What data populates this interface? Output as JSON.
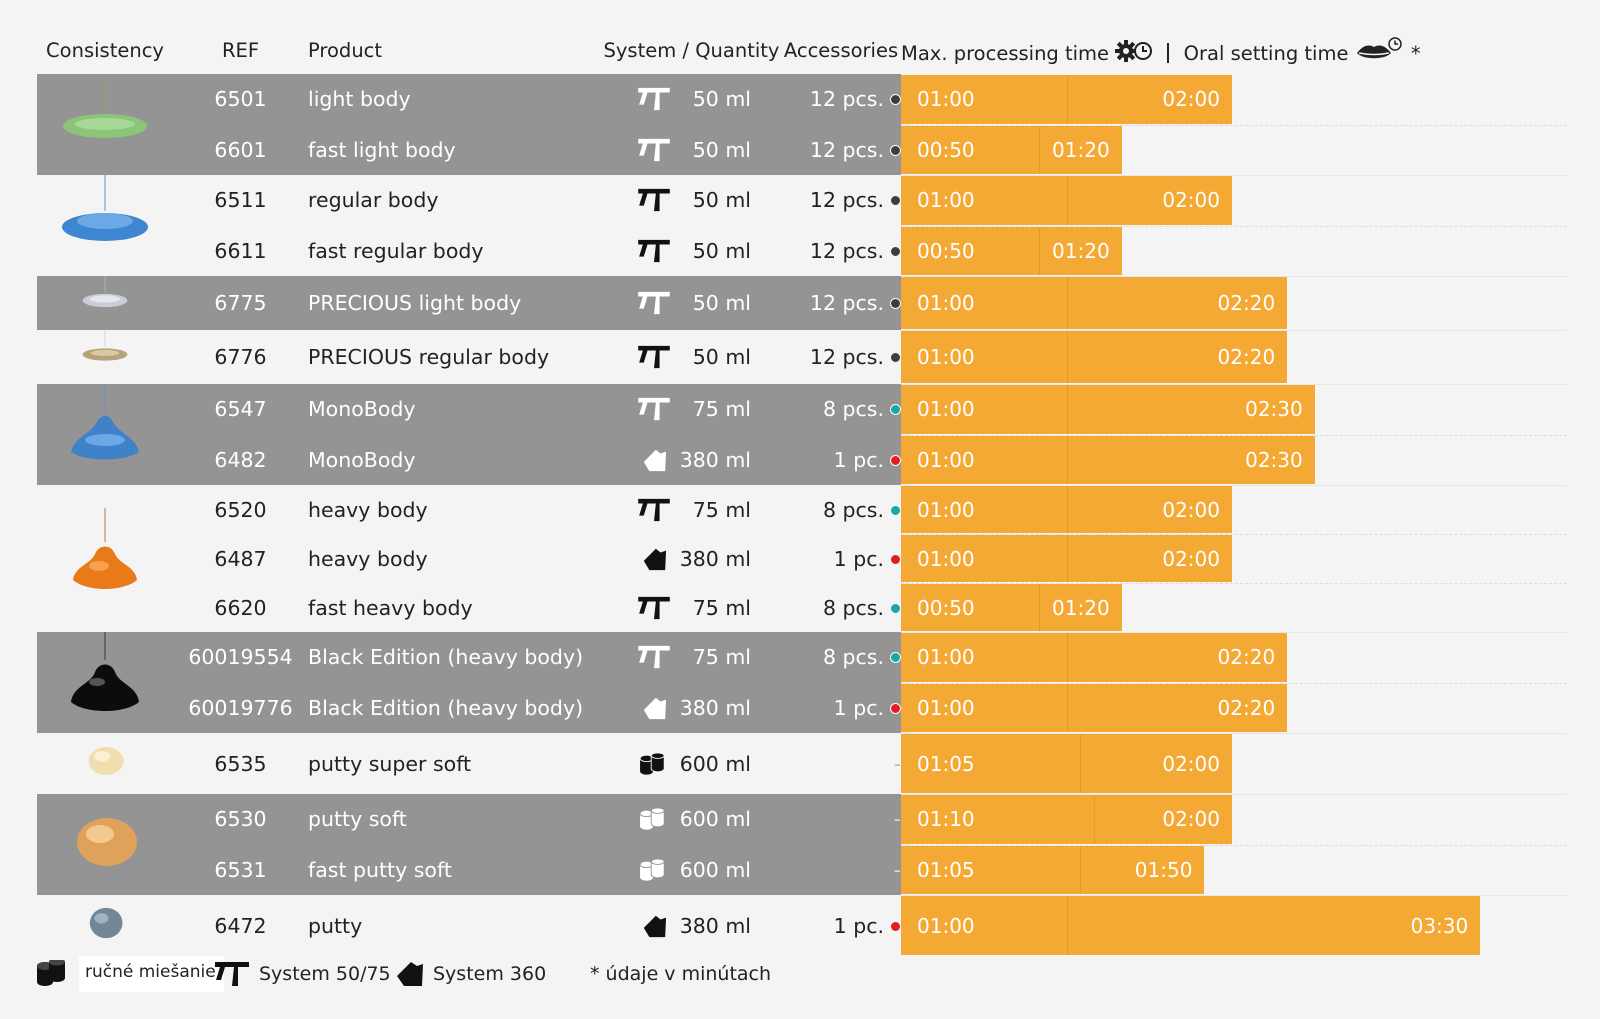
{
  "header": {
    "consistency": "Consistency",
    "ref": "REF",
    "product": "Product",
    "system_quantity": "System / Quantity",
    "accessories": "Accessories",
    "max_processing": "Max. processing time",
    "oral_setting": "Oral setting time",
    "asterisk": "*"
  },
  "time_scale_max": "04:00",
  "colors": {
    "row_dark": "#949494",
    "row_light": "#f4f4f4",
    "time_bar": "#f4a935",
    "dot_dark_grey": "#3c3c44",
    "dot_teal": "#1aa7a7",
    "dot_red": "#e31b23"
  },
  "groups": [
    {
      "consistency_icon": "green-light-body-drop-icon",
      "shade": "dark",
      "rows": [
        {
          "ref": "6501",
          "product": "light body",
          "system": "system-50-75-icon",
          "quantity": "50 ml",
          "accessories": "12 pcs.",
          "dot": "dark-grey",
          "processing": "01:00",
          "setting": "02:00"
        },
        {
          "ref": "6601",
          "product": "fast light body",
          "system": "system-50-75-icon",
          "quantity": "50 ml",
          "accessories": "12 pcs.",
          "dot": "dark-grey",
          "processing": "00:50",
          "setting": "01:20"
        }
      ]
    },
    {
      "consistency_icon": "blue-regular-body-drop-icon",
      "shade": "light",
      "rows": [
        {
          "ref": "6511",
          "product": "regular body",
          "system": "system-50-75-icon",
          "quantity": "50 ml",
          "accessories": "12 pcs.",
          "dot": "dark-grey",
          "processing": "01:00",
          "setting": "02:00"
        },
        {
          "ref": "6611",
          "product": "fast regular body",
          "system": "system-50-75-icon",
          "quantity": "50 ml",
          "accessories": "12 pcs.",
          "dot": "dark-grey",
          "processing": "00:50",
          "setting": "01:20"
        }
      ]
    },
    {
      "consistency_icon": "silver-precious-drop-icon",
      "shade": "dark",
      "rows": [
        {
          "ref": "6775",
          "product": "PRECIOUS light body",
          "system": "system-50-75-icon",
          "quantity": "50 ml",
          "accessories": "12 pcs.",
          "dot": "dark-grey",
          "processing": "01:00",
          "setting": "02:20"
        }
      ]
    },
    {
      "consistency_icon": "gold-precious-drop-icon",
      "shade": "light",
      "rows": [
        {
          "ref": "6776",
          "product": "PRECIOUS regular body",
          "system": "system-50-75-icon",
          "quantity": "50 ml",
          "accessories": "12 pcs.",
          "dot": "dark-grey",
          "processing": "01:00",
          "setting": "02:20"
        }
      ]
    },
    {
      "consistency_icon": "blue-monobody-drop-icon",
      "shade": "dark",
      "rows": [
        {
          "ref": "6547",
          "product": "MonoBody",
          "system": "system-50-75-icon",
          "quantity": "75 ml",
          "accessories": "8 pcs.",
          "dot": "teal",
          "processing": "01:00",
          "setting": "02:30"
        },
        {
          "ref": "6482",
          "product": "MonoBody",
          "system": "system-360-icon",
          "quantity": "380 ml",
          "accessories": "1 pc.",
          "dot": "red",
          "processing": "01:00",
          "setting": "02:30"
        }
      ]
    },
    {
      "consistency_icon": "orange-heavy-body-drop-icon",
      "shade": "light",
      "rows": [
        {
          "ref": "6520",
          "product": "heavy body",
          "system": "system-50-75-icon",
          "quantity": "75 ml",
          "accessories": "8 pcs.",
          "dot": "teal",
          "processing": "01:00",
          "setting": "02:00"
        },
        {
          "ref": "6487",
          "product": "heavy body",
          "system": "system-360-icon",
          "quantity": "380 ml",
          "accessories": "1 pc.",
          "dot": "red",
          "processing": "01:00",
          "setting": "02:00"
        },
        {
          "ref": "6620",
          "product": "fast heavy body",
          "system": "system-50-75-icon",
          "quantity": "75 ml",
          "accessories": "8 pcs.",
          "dot": "teal",
          "processing": "00:50",
          "setting": "01:20"
        }
      ]
    },
    {
      "consistency_icon": "black-edition-drop-icon",
      "shade": "dark",
      "rows": [
        {
          "ref": "60019554",
          "product": "Black Edition (heavy body)",
          "system": "system-50-75-icon",
          "quantity": "75 ml",
          "accessories": "8 pcs.",
          "dot": "teal",
          "processing": "01:00",
          "setting": "02:20"
        },
        {
          "ref": "60019776",
          "product": "Black Edition (heavy body)",
          "system": "system-360-icon",
          "quantity": "380 ml",
          "accessories": "1 pc.",
          "dot": "red",
          "processing": "01:00",
          "setting": "02:20"
        }
      ]
    },
    {
      "consistency_icon": "cream-putty-ball-icon",
      "shade": "light",
      "tall": true,
      "rows": [
        {
          "ref": "6535",
          "product": "putty super soft",
          "system": "hand-mixing-icon",
          "quantity": "600 ml",
          "accessories": "-",
          "dot": "",
          "processing": "01:05",
          "setting": "02:00"
        }
      ]
    },
    {
      "consistency_icon": "tan-putty-ball-icon",
      "shade": "dark",
      "rows": [
        {
          "ref": "6530",
          "product": "putty soft",
          "system": "hand-mixing-icon",
          "quantity": "600 ml",
          "accessories": "-",
          "dot": "",
          "processing": "01:10",
          "setting": "02:00"
        },
        {
          "ref": "6531",
          "product": "fast putty soft",
          "system": "hand-mixing-icon",
          "quantity": "600 ml",
          "accessories": "-",
          "dot": "",
          "processing": "01:05",
          "setting": "01:50"
        }
      ]
    },
    {
      "consistency_icon": "grey-putty-ball-icon",
      "shade": "light",
      "tall": true,
      "rows": [
        {
          "ref": "6472",
          "product": "putty",
          "system": "system-360-icon",
          "quantity": "380 ml",
          "accessories": "1 pc.",
          "dot": "red",
          "processing": "01:00",
          "setting": "03:30"
        }
      ]
    }
  ],
  "legend": {
    "hand_mixing": "ručné miešanie",
    "system_50_75": "System 50/75",
    "system_360": "System 360",
    "note": "* údaje v minútach"
  }
}
